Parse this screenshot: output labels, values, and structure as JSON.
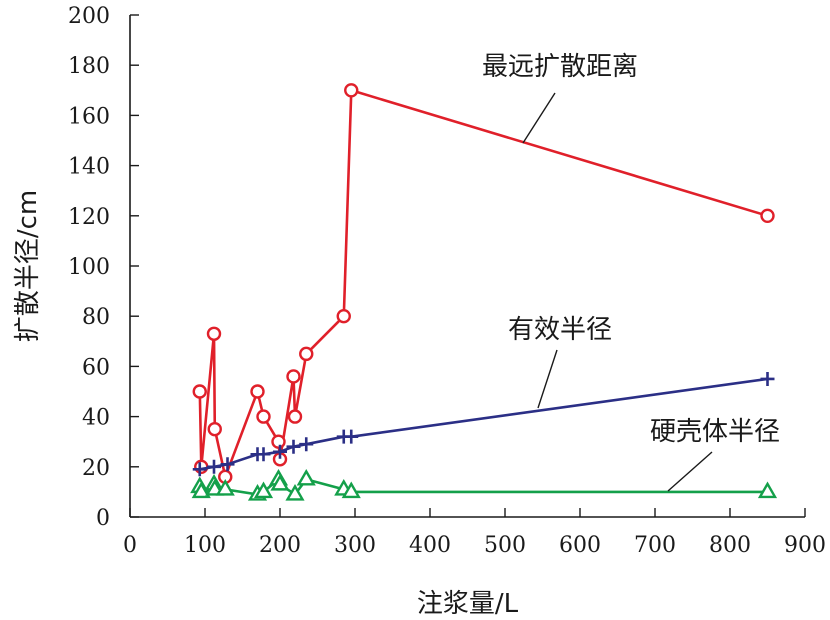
{
  "chart_data": {
    "type": "line",
    "xlabel": "注浆量/L",
    "ylabel": "扩散半径/cm",
    "xlim": [
      0,
      900
    ],
    "ylim": [
      0,
      200
    ],
    "xticks": [
      0,
      100,
      200,
      300,
      400,
      500,
      600,
      700,
      800,
      900
    ],
    "yticks": [
      0,
      20,
      40,
      60,
      80,
      100,
      120,
      140,
      160,
      180,
      200
    ],
    "grid": false,
    "legend": "none",
    "series": [
      {
        "name": "最远扩散距离",
        "color": "#e0202a",
        "marker": "circle",
        "x": [
          93,
          95,
          112,
          113,
          127,
          170,
          178,
          198,
          200,
          218,
          220,
          235,
          285,
          295,
          850
        ],
        "y": [
          50,
          20,
          73,
          35,
          16,
          50,
          40,
          30,
          23,
          56,
          40,
          65,
          80,
          170,
          120
        ]
      },
      {
        "name": "有效半径",
        "color": "#2b2f86",
        "marker": "plus",
        "x": [
          93,
          112,
          130,
          170,
          178,
          200,
          218,
          235,
          285,
          295,
          850
        ],
        "y": [
          19,
          20,
          21,
          25,
          25,
          26,
          28,
          29,
          32,
          32,
          55
        ]
      },
      {
        "name": "硬壳体半径",
        "color": "#14a04a",
        "marker": "triangle",
        "x": [
          93,
          95,
          112,
          113,
          127,
          170,
          178,
          198,
          200,
          220,
          235,
          285,
          295,
          850
        ],
        "y": [
          12,
          10,
          13,
          11,
          11,
          9,
          10,
          15,
          13,
          9,
          15,
          11,
          10,
          10
        ]
      }
    ]
  }
}
